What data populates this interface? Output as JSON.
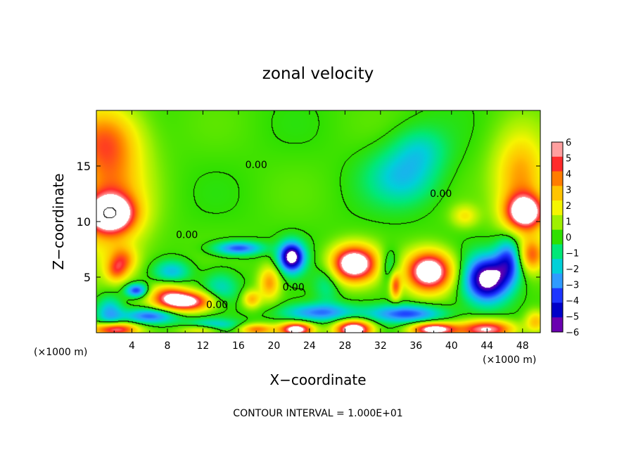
{
  "chart_data": {
    "type": "heatmap",
    "title": "zonal velocity",
    "xlabel": "X−coordinate",
    "ylabel": "Z−coordinate",
    "x_unit_left": "(×1000 m)",
    "x_unit_right": "(×1000 m)",
    "xlim": [
      0,
      50
    ],
    "ylim": [
      0,
      20
    ],
    "x_ticks": [
      4,
      8,
      12,
      16,
      20,
      24,
      28,
      32,
      36,
      40,
      44,
      48
    ],
    "y_ticks": [
      5,
      10,
      15
    ],
    "x_tick_labels": [
      "4",
      "8",
      "12",
      "16",
      "20",
      "24",
      "28",
      "32",
      "36",
      "40",
      "44",
      "48"
    ],
    "y_tick_labels": [
      "5",
      "10",
      "15"
    ],
    "colorbar": {
      "min": -6,
      "max": 6,
      "labels": [
        "6",
        "5",
        "4",
        "3",
        "2",
        "1",
        "0",
        "−1",
        "−2",
        "−3",
        "−4",
        "−5",
        "−6"
      ],
      "colors": [
        "#ff9f9f",
        "#ff2b2b",
        "#ff7d00",
        "#ffc400",
        "#f5f500",
        "#9ff000",
        "#2fe000",
        "#00e878",
        "#00d0d8",
        "#2f9bff",
        "#1d36ff",
        "#0000c8",
        "#6a00b0"
      ]
    },
    "contour_labels": [
      {
        "text": "0.00",
        "x": 18.0,
        "y": 14.8
      },
      {
        "text": "0.00",
        "x": 38.8,
        "y": 12.2
      },
      {
        "text": "0.00",
        "x": 10.2,
        "y": 8.5
      },
      {
        "text": "0.00",
        "x": 22.2,
        "y": 3.8
      },
      {
        "text": "0.00",
        "x": 13.6,
        "y": 2.2
      }
    ],
    "contour_interval_text": "CONTOUR INTERVAL = 1.000E+01",
    "features": [
      {
        "x": 1.5,
        "z": 10.7,
        "u": 7.0,
        "sx": 2.6,
        "sz": 1.6
      },
      {
        "x": 1.6,
        "z": 12.0,
        "u": 3.5,
        "sx": 4.0,
        "sz": 6.0
      },
      {
        "x": 0.8,
        "z": 17.5,
        "u": 3.0,
        "sx": 4.0,
        "sz": 3.0
      },
      {
        "x": 48.3,
        "z": 10.8,
        "u": 7.0,
        "sx": 2.2,
        "sz": 1.6
      },
      {
        "x": 47.8,
        "z": 14.0,
        "u": 3.5,
        "sx": 3.0,
        "sz": 4.0
      },
      {
        "x": 49.0,
        "z": 7.0,
        "u": 4.0,
        "sx": 1.5,
        "sz": 1.5
      },
      {
        "x": 41.5,
        "z": 10.5,
        "u": 2.0,
        "sx": 1.5,
        "sz": 1.0
      },
      {
        "x": 34.5,
        "z": 14.0,
        "u": -2.3,
        "sx": 4.0,
        "sz": 2.5
      },
      {
        "x": 36.5,
        "z": 16.5,
        "u": -1.5,
        "sx": 3.0,
        "sz": 2.0
      },
      {
        "x": 10.0,
        "z": 2.8,
        "u": 7.0,
        "sx": 3.0,
        "sz": 0.9
      },
      {
        "x": 8.0,
        "z": 3.5,
        "u": 3.0,
        "sx": 2.0,
        "sz": 1.0
      },
      {
        "x": 29.0,
        "z": 6.2,
        "u": 8.0,
        "sx": 2.6,
        "sz": 1.6
      },
      {
        "x": 37.5,
        "z": 5.5,
        "u": 8.0,
        "sx": 2.6,
        "sz": 1.8
      },
      {
        "x": 33.7,
        "z": 4.2,
        "u": 4.0,
        "sx": 0.6,
        "sz": 1.2
      },
      {
        "x": 19.5,
        "z": 4.5,
        "u": 3.5,
        "sx": 1.2,
        "sz": 1.5
      },
      {
        "x": 17.5,
        "z": 3.0,
        "u": 3.0,
        "sx": 1.0,
        "sz": 0.8
      },
      {
        "x": 3.0,
        "z": 6.5,
        "u": 3.0,
        "sx": 1.5,
        "sz": 1.2
      },
      {
        "x": 2.2,
        "z": 5.5,
        "u": 2.5,
        "sx": 1.2,
        "sz": 1.0
      },
      {
        "x": 22.0,
        "z": 6.8,
        "u": -7.0,
        "sx": 1.4,
        "sz": 1.3
      },
      {
        "x": 16.0,
        "z": 7.6,
        "u": -4.0,
        "sx": 2.6,
        "sz": 0.6
      },
      {
        "x": 4.5,
        "z": 3.8,
        "u": -4.5,
        "sx": 1.2,
        "sz": 0.6
      },
      {
        "x": 8.5,
        "z": 5.5,
        "u": -2.5,
        "sx": 2.0,
        "sz": 1.0
      },
      {
        "x": 14.0,
        "z": 4.0,
        "u": -2.0,
        "sx": 2.0,
        "sz": 1.5
      },
      {
        "x": 26.0,
        "z": 4.5,
        "u": -1.5,
        "sx": 1.5,
        "sz": 2.0
      },
      {
        "x": 33.0,
        "z": 6.0,
        "u": -2.0,
        "sx": 1.2,
        "sz": 1.5
      },
      {
        "x": 44.0,
        "z": 4.8,
        "u": -7.0,
        "sx": 2.4,
        "sz": 2.0
      },
      {
        "x": 46.5,
        "z": 6.5,
        "u": -4.0,
        "sx": 1.5,
        "sz": 2.0
      },
      {
        "x": 6.0,
        "z": 1.5,
        "u": -4.0,
        "sx": 3.0,
        "sz": 0.7
      },
      {
        "x": 25.0,
        "z": 1.8,
        "u": -3.5,
        "sx": 4.0,
        "sz": 0.8
      },
      {
        "x": 35.0,
        "z": 1.7,
        "u": -4.0,
        "sx": 4.0,
        "sz": 0.8
      },
      {
        "x": 13.0,
        "z": 0.6,
        "u": -3.0,
        "sx": 3.0,
        "sz": 0.6
      },
      {
        "x": 1.5,
        "z": 1.8,
        "u": -3.0,
        "sx": 1.5,
        "sz": 1.5
      },
      {
        "x": 2.0,
        "z": 0.3,
        "u": 6.0,
        "sx": 2.5,
        "sz": 0.6
      },
      {
        "x": 12.0,
        "z": 0.3,
        "u": 3.5,
        "sx": 2.5,
        "sz": 0.5
      },
      {
        "x": 18.0,
        "z": 0.3,
        "u": 4.0,
        "sx": 2.0,
        "sz": 0.5
      },
      {
        "x": 22.5,
        "z": 0.3,
        "u": 7.0,
        "sx": 1.8,
        "sz": 0.6
      },
      {
        "x": 29.0,
        "z": 0.3,
        "u": 8.0,
        "sx": 2.0,
        "sz": 0.8
      },
      {
        "x": 38.0,
        "z": 0.3,
        "u": 7.0,
        "sx": 2.5,
        "sz": 0.6
      },
      {
        "x": 44.0,
        "z": 0.3,
        "u": 6.0,
        "sx": 3.0,
        "sz": 0.8
      },
      {
        "x": 49.5,
        "z": 1.0,
        "u": 3.0,
        "sx": 1.2,
        "sz": 1.0
      }
    ]
  }
}
